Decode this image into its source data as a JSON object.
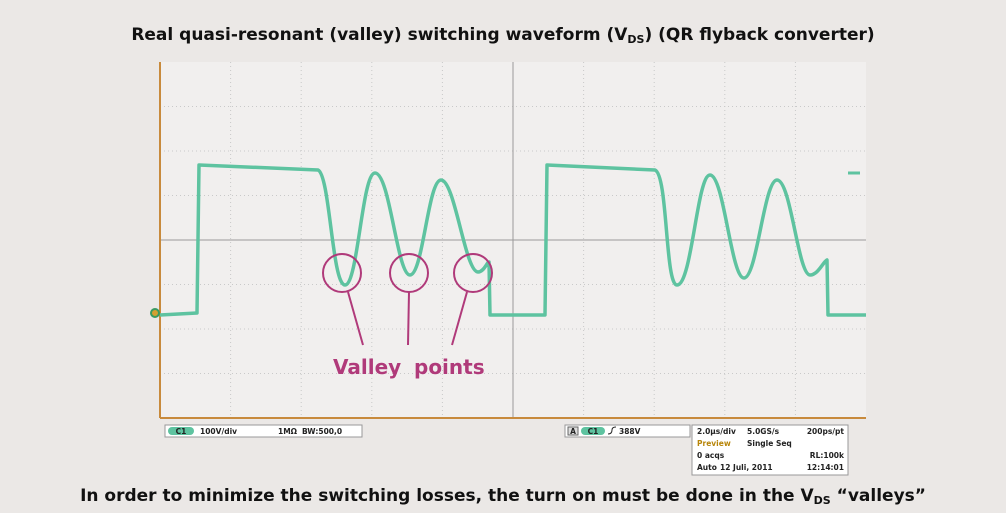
{
  "title": [
    "Real quasi-resonant (valley) switching waveform (V",
    "DS",
    ") (QR flyback converter)"
  ],
  "annotation": [
    "Valley",
    "points"
  ],
  "scope": {
    "channel": "C1",
    "scale": "100V/div",
    "impedance": "1MΩ",
    "bandwidth": "BW:500,0",
    "trigger_source": "A",
    "trigger_channel": "C1",
    "trigger_level": "388V",
    "info": {
      "timebase": "2.0µs/div",
      "sample_rate": "5.0GS/s",
      "resolution": "200ps/pt",
      "mode": "Preview",
      "sequence": "Single Seq",
      "acqs": "0 acqs",
      "record_length": "RL:100k",
      "trigger_mode": "Auto",
      "date": "12 Juli, 2011",
      "time": "12:14:01"
    }
  },
  "caption": [
    "In order to minimize the switching losses, the turn on must be done in the V",
    "DS",
    " “valleys”"
  ]
}
